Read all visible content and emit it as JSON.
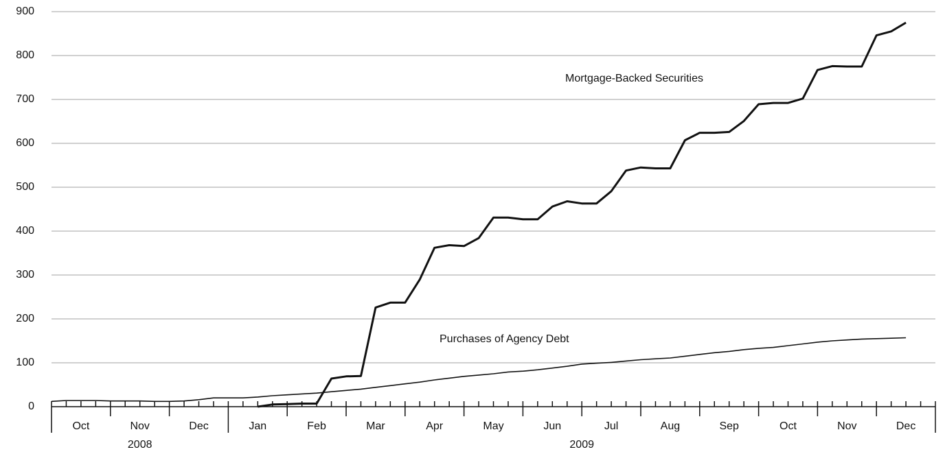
{
  "chart_data": {
    "type": "line",
    "categories": [
      null,
      null,
      "Oct",
      null,
      null,
      null,
      "Nov",
      null,
      null,
      null,
      "Dec",
      null,
      null,
      null,
      "Jan",
      null,
      null,
      null,
      "Feb",
      null,
      null,
      null,
      "Mar",
      null,
      null,
      null,
      "Apr",
      null,
      null,
      null,
      "May",
      null,
      null,
      null,
      "Jun",
      null,
      null,
      null,
      "Jul",
      null,
      null,
      null,
      "Aug",
      null,
      null,
      null,
      "Sep",
      null,
      null,
      null,
      "Oct",
      null,
      null,
      null,
      "Nov",
      null,
      null,
      null,
      "Dec",
      null
    ],
    "x_groups": [
      {
        "label": "2008",
        "count": 12
      },
      {
        "label": "2009",
        "count": 48
      }
    ],
    "series": [
      {
        "name": "Mortgage-Backed Securities",
        "color": "#111111",
        "values": [
          null,
          null,
          null,
          null,
          null,
          null,
          null,
          null,
          null,
          null,
          null,
          null,
          null,
          null,
          0,
          5,
          6,
          7,
          7,
          64,
          69,
          70,
          226,
          237,
          237,
          290,
          362,
          368,
          366,
          384,
          431,
          431,
          427,
          427,
          456,
          468,
          463,
          463,
          491,
          538,
          545,
          543,
          543,
          607,
          624,
          624,
          626,
          651,
          689,
          692,
          692,
          702,
          767,
          776,
          775,
          775,
          846,
          855,
          875,
          null
        ]
      },
      {
        "name": "Purchases of Agency Debt",
        "color": "#111111",
        "values": [
          12,
          14,
          14,
          14,
          13,
          13,
          13,
          12,
          12,
          13,
          16,
          20,
          20,
          20,
          22,
          25,
          27,
          29,
          31,
          34,
          37,
          40,
          44,
          48,
          52,
          56,
          61,
          65,
          69,
          72,
          75,
          79,
          81,
          84,
          88,
          92,
          97,
          99,
          101,
          104,
          107,
          109,
          111,
          115,
          119,
          123,
          126,
          130,
          133,
          135,
          139,
          143,
          147,
          150,
          152,
          154,
          155,
          156,
          157,
          null
        ]
      }
    ],
    "ylim": [
      0,
      900
    ],
    "yticks": [
      0,
      100,
      200,
      300,
      400,
      500,
      600,
      700,
      800,
      900
    ],
    "grid": true
  }
}
